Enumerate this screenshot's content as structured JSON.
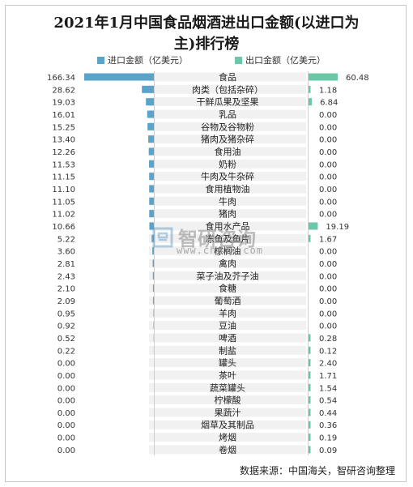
{
  "title_line1": "2021年1月中国食品烟酒进出口金额(以进口为",
  "title_line2": "主)排行榜",
  "legend": {
    "import_label": "进口金额（亿美元）",
    "export_label": "出口金额（亿美元）"
  },
  "colors": {
    "import": "#5ba3c9",
    "export": "#6cc7a6",
    "label_bg": "#f1f1f1"
  },
  "source": "数据来源：中国海关，智研咨询整理",
  "watermark_logo_text": "智研",
  "watermark_url": "www.chyxx.com",
  "chart_data": {
    "type": "bar",
    "categories": [
      "食品",
      "肉类（包括杂碎）",
      "干鲜瓜果及坚果",
      "乳品",
      "谷物及谷物粉",
      "猪肉及猪杂碎",
      "食用油",
      "奶粉",
      "牛肉及牛杂碎",
      "食用植物油",
      "牛肉",
      "猪肉",
      "食用水产品",
      "冻鱼及鱼片",
      "棕榈油",
      "禽肉",
      "菜子油及芥子油",
      "食糖",
      "葡萄酒",
      "羊肉",
      "豆油",
      "啤酒",
      "制盐",
      "罐头",
      "茶叶",
      "蔬菜罐头",
      "柠檬酸",
      "果蔬汁",
      "烟草及其制品",
      "烤烟",
      "卷烟"
    ],
    "series": [
      {
        "name": "进口金额（亿美元）",
        "values": [
          166.34,
          28.62,
          19.03,
          16.01,
          15.25,
          13.4,
          12.26,
          11.53,
          11.15,
          11.1,
          11.05,
          11.02,
          10.66,
          5.22,
          3.6,
          2.81,
          2.43,
          2.1,
          2.09,
          0.95,
          0.92,
          0.52,
          0.22,
          0.0,
          0.0,
          0.0,
          0.0,
          0.0,
          0.0,
          0.0,
          0.0
        ],
        "labels": [
          "166.34",
          "28.62",
          "19.03",
          "16.01",
          "15.25",
          "13.40",
          "12.26",
          "11.53",
          "11.15",
          "11.10",
          "11.05",
          "11.02",
          "10.66",
          "5.22",
          "3.60",
          "2.81",
          "2.43",
          "2.10",
          "2.09",
          "0.95",
          "0.92",
          "0.52",
          "0.22",
          "0.00",
          "0.00",
          "0.00",
          "0.00",
          "0.00",
          "0.00",
          "0.00",
          "0.00"
        ]
      },
      {
        "name": "出口金额（亿美元）",
        "values": [
          60.48,
          1.18,
          6.84,
          0.0,
          0.0,
          0.0,
          0.0,
          0.0,
          0.0,
          0.0,
          0.0,
          0.0,
          19.19,
          1.67,
          0.0,
          0.0,
          0.0,
          0.0,
          0.0,
          0.0,
          0.0,
          0.28,
          0.12,
          2.4,
          1.71,
          1.54,
          0.54,
          0.44,
          0.36,
          0.19,
          0.09
        ],
        "labels": [
          "60.48",
          "1.18",
          "6.84",
          "0.00",
          "0.00",
          "0.00",
          "0.00",
          "0.00",
          "0.00",
          "0.00",
          "0.00",
          "0.00",
          "19.19",
          "1.67",
          "0.00",
          "0.00",
          "0.00",
          "0.00",
          "0.00",
          "0.00",
          "0.00",
          "0.28",
          "0.12",
          "2.40",
          "1.71",
          "1.54",
          "0.54",
          "0.44",
          "0.36",
          "0.19",
          "0.09"
        ]
      }
    ],
    "layout": "butterfly (import bars extend left, export bars extend right, category labels in center)"
  }
}
